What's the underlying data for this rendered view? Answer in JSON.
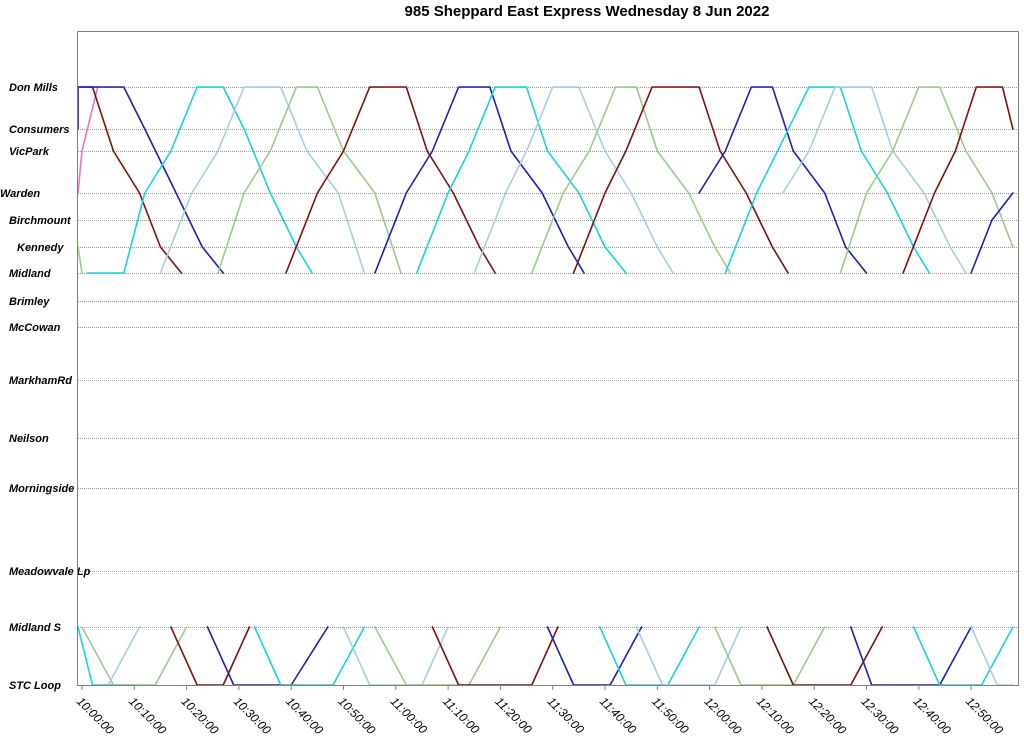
{
  "chart_data": {
    "type": "line",
    "title": "985 Sheppard East Express Wednesday 8 Jun 2022",
    "xlabel": "",
    "ylabel": "",
    "x_range": [
      "09:56",
      "12:58"
    ],
    "grid": true,
    "legend": "none",
    "stops": [
      "Don Mills",
      "Consumers",
      "VicPark",
      "Warden",
      "Birchmount",
      "Kennedy",
      "Midland",
      "Brimley",
      "McCowan",
      "MarkhamRd",
      "Neilson",
      "Morningside",
      "Meadowvale Lp",
      "Midland S",
      "STC Loop"
    ],
    "x_ticks": [
      "10:00:00",
      "10:10:00",
      "10:20:00",
      "10:30:00",
      "10:40:00",
      "10:50:00",
      "11:00:00",
      "11:10:00",
      "11:20:00",
      "11:30:00",
      "11:40:00",
      "11:50:00",
      "12:00:00",
      "12:10:00",
      "12:20:00",
      "12:30:00",
      "12:40:00",
      "12:50:00"
    ],
    "series": [
      {
        "color": "#e377c2",
        "points": [
          [
            "09:56",
            "Warden"
          ],
          [
            "10:00",
            "VicPark"
          ],
          [
            "10:03",
            "Don Mills"
          ]
        ]
      },
      {
        "color": "#f5b041",
        "points": [
          [
            "09:56",
            "Consumers"
          ],
          [
            "09:57",
            "Don Mills"
          ]
        ]
      },
      {
        "color": "#7f1010",
        "points": [
          [
            "09:58",
            "Don Mills"
          ],
          [
            "10:02",
            "Don Mills"
          ],
          [
            "10:06",
            "VicPark"
          ],
          [
            "10:11",
            "Warden"
          ],
          [
            "10:15",
            "Kennedy"
          ],
          [
            "10:19",
            "Midland"
          ]
        ]
      },
      {
        "color": "#1f1fb4",
        "points": [
          [
            "09:56",
            "Consumers"
          ],
          [
            "09:59",
            "Don Mills"
          ],
          [
            "10:08",
            "Don Mills"
          ],
          [
            "10:12",
            "Consumers"
          ],
          [
            "10:18",
            "Warden"
          ],
          [
            "10:23",
            "Kennedy"
          ],
          [
            "10:27",
            "Midland"
          ]
        ]
      },
      {
        "color": "#17d4dc",
        "points": [
          [
            "10:01",
            "Midland"
          ],
          [
            "10:08",
            "Midland"
          ],
          [
            "10:12",
            "Warden"
          ],
          [
            "10:17",
            "VicPark"
          ],
          [
            "10:22",
            "Don Mills"
          ],
          [
            "10:27",
            "Don Mills"
          ],
          [
            "10:31",
            "Consumers"
          ],
          [
            "10:36",
            "Warden"
          ],
          [
            "10:41",
            "Kennedy"
          ],
          [
            "10:44",
            "Midland"
          ]
        ]
      },
      {
        "color": "#a6cee3",
        "points": [
          [
            "10:15",
            "Midland"
          ],
          [
            "10:21",
            "Warden"
          ],
          [
            "10:26",
            "VicPark"
          ],
          [
            "10:31",
            "Don Mills"
          ],
          [
            "10:38",
            "Don Mills"
          ],
          [
            "10:43",
            "VicPark"
          ],
          [
            "10:49",
            "Warden"
          ],
          [
            "10:54",
            "Midland"
          ]
        ]
      },
      {
        "color": "#9cc98c",
        "points": [
          [
            "09:56",
            "Kennedy"
          ],
          [
            "10:00",
            "Midland"
          ]
        ]
      },
      {
        "color": "#9cc98c",
        "points": [
          [
            "10:26",
            "Midland"
          ],
          [
            "10:31",
            "Warden"
          ],
          [
            "10:36",
            "VicPark"
          ],
          [
            "10:41",
            "Don Mills"
          ],
          [
            "10:45",
            "Don Mills"
          ],
          [
            "10:50",
            "VicPark"
          ],
          [
            "10:56",
            "Warden"
          ],
          [
            "11:01",
            "Midland"
          ]
        ]
      },
      {
        "color": "#7f1010",
        "points": [
          [
            "10:39",
            "Midland"
          ],
          [
            "10:45",
            "Warden"
          ],
          [
            "10:50",
            "VicPark"
          ],
          [
            "10:55",
            "Don Mills"
          ],
          [
            "11:02",
            "Don Mills"
          ],
          [
            "11:06",
            "VicPark"
          ],
          [
            "11:11",
            "Warden"
          ],
          [
            "11:16",
            "Kennedy"
          ],
          [
            "11:19",
            "Midland"
          ]
        ]
      },
      {
        "color": "#1f1fb4",
        "points": [
          [
            "10:56",
            "Midland"
          ],
          [
            "11:02",
            "Warden"
          ],
          [
            "11:07",
            "VicPark"
          ],
          [
            "11:12",
            "Don Mills"
          ],
          [
            "11:18",
            "Don Mills"
          ],
          [
            "11:22",
            "VicPark"
          ],
          [
            "11:28",
            "Warden"
          ],
          [
            "11:33",
            "Kennedy"
          ],
          [
            "11:36",
            "Midland"
          ]
        ]
      },
      {
        "color": "#17d4dc",
        "points": [
          [
            "11:04",
            "Midland"
          ],
          [
            "11:10",
            "Warden"
          ],
          [
            "11:14",
            "VicPark"
          ],
          [
            "11:19",
            "Don Mills"
          ],
          [
            "11:25",
            "Don Mills"
          ],
          [
            "11:29",
            "VicPark"
          ],
          [
            "11:35",
            "Warden"
          ],
          [
            "11:40",
            "Kennedy"
          ],
          [
            "11:44",
            "Midland"
          ]
        ]
      },
      {
        "color": "#a6cee3",
        "points": [
          [
            "11:15",
            "Midland"
          ],
          [
            "11:21",
            "Warden"
          ],
          [
            "11:25",
            "VicPark"
          ],
          [
            "11:30",
            "Don Mills"
          ],
          [
            "11:35",
            "Don Mills"
          ],
          [
            "11:40",
            "VicPark"
          ],
          [
            "11:45",
            "Warden"
          ],
          [
            "11:50",
            "Kennedy"
          ],
          [
            "11:53",
            "Midland"
          ]
        ]
      },
      {
        "color": "#9cc98c",
        "points": [
          [
            "11:26",
            "Midland"
          ],
          [
            "11:32",
            "Warden"
          ],
          [
            "11:37",
            "VicPark"
          ],
          [
            "11:42",
            "Don Mills"
          ],
          [
            "11:46",
            "Don Mills"
          ],
          [
            "11:50",
            "VicPark"
          ],
          [
            "11:56",
            "Warden"
          ],
          [
            "12:01",
            "Kennedy"
          ],
          [
            "12:04",
            "Midland"
          ]
        ]
      },
      {
        "color": "#7f1010",
        "points": [
          [
            "11:34",
            "Midland"
          ],
          [
            "11:40",
            "Warden"
          ],
          [
            "11:44",
            "VicPark"
          ],
          [
            "11:49",
            "Don Mills"
          ],
          [
            "11:58",
            "Don Mills"
          ],
          [
            "12:02",
            "VicPark"
          ],
          [
            "12:07",
            "Warden"
          ],
          [
            "12:12",
            "Kennedy"
          ],
          [
            "12:15",
            "Midland"
          ]
        ]
      },
      {
        "color": "#1f1fb4",
        "points": [
          [
            "11:58",
            "Warden"
          ],
          [
            "12:03",
            "VicPark"
          ],
          [
            "12:08",
            "Don Mills"
          ],
          [
            "12:12",
            "Don Mills"
          ],
          [
            "12:16",
            "VicPark"
          ],
          [
            "12:22",
            "Warden"
          ],
          [
            "12:26",
            "Kennedy"
          ],
          [
            "12:30",
            "Midland"
          ]
        ]
      },
      {
        "color": "#17d4dc",
        "points": [
          [
            "12:03",
            "Midland"
          ],
          [
            "12:09",
            "Warden"
          ],
          [
            "12:13",
            "VicPark"
          ],
          [
            "12:19",
            "Don Mills"
          ],
          [
            "12:25",
            "Don Mills"
          ],
          [
            "12:29",
            "VicPark"
          ],
          [
            "12:34",
            "Warden"
          ],
          [
            "12:39",
            "Kennedy"
          ],
          [
            "12:42",
            "Midland"
          ]
        ]
      },
      {
        "color": "#a6cee3",
        "points": [
          [
            "12:14",
            "Warden"
          ],
          [
            "12:19",
            "VicPark"
          ],
          [
            "12:24",
            "Don Mills"
          ],
          [
            "12:31",
            "Don Mills"
          ],
          [
            "12:35",
            "VicPark"
          ],
          [
            "12:41",
            "Warden"
          ],
          [
            "12:46",
            "Kennedy"
          ],
          [
            "12:49",
            "Midland"
          ]
        ]
      },
      {
        "color": "#9cc98c",
        "points": [
          [
            "12:25",
            "Midland"
          ],
          [
            "12:30",
            "Warden"
          ],
          [
            "12:35",
            "VicPark"
          ],
          [
            "12:40",
            "Don Mills"
          ],
          [
            "12:44",
            "Don Mills"
          ],
          [
            "12:49",
            "VicPark"
          ],
          [
            "12:54",
            "Warden"
          ],
          [
            "12:58",
            "Kennedy"
          ]
        ]
      },
      {
        "color": "#7f1010",
        "points": [
          [
            "12:37",
            "Midland"
          ],
          [
            "12:43",
            "Warden"
          ],
          [
            "12:47",
            "VicPark"
          ],
          [
            "12:51",
            "Don Mills"
          ],
          [
            "12:56",
            "Don Mills"
          ],
          [
            "12:58",
            "Consumers"
          ]
        ]
      },
      {
        "color": "#1f1fb4",
        "points": [
          [
            "12:50",
            "Midland"
          ],
          [
            "12:54",
            "Birchmount"
          ],
          [
            "12:58",
            "Warden"
          ]
        ]
      },
      {
        "color": "#17d4dc",
        "points": [
          [
            "09:56",
            "Midland S"
          ],
          [
            "09:58",
            "Midland S"
          ],
          [
            "10:02",
            "STC Loop"
          ],
          [
            "10:10",
            "STC Loop"
          ]
        ]
      },
      {
        "color": "#9cc98c",
        "points": [
          [
            "10:00",
            "Midland S"
          ],
          [
            "10:06",
            "STC Loop"
          ],
          [
            "10:14",
            "STC Loop"
          ],
          [
            "10:20",
            "Midland S"
          ]
        ]
      },
      {
        "color": "#a6cee3",
        "points": [
          [
            "10:05",
            "STC Loop"
          ],
          [
            "10:11",
            "Midland S"
          ]
        ]
      },
      {
        "color": "#7f1010",
        "points": [
          [
            "10:17",
            "Midland S"
          ],
          [
            "10:22",
            "STC Loop"
          ],
          [
            "10:27",
            "STC Loop"
          ],
          [
            "10:32",
            "Midland S"
          ]
        ]
      },
      {
        "color": "#1f1fb4",
        "points": [
          [
            "10:24",
            "Midland S"
          ],
          [
            "10:29",
            "STC Loop"
          ],
          [
            "10:40",
            "STC Loop"
          ],
          [
            "10:47",
            "Midland S"
          ]
        ]
      },
      {
        "color": "#17d4dc",
        "points": [
          [
            "10:33",
            "Midland S"
          ],
          [
            "10:38",
            "STC Loop"
          ],
          [
            "10:48",
            "STC Loop"
          ],
          [
            "10:54",
            "Midland S"
          ]
        ]
      },
      {
        "color": "#a6cee3",
        "points": [
          [
            "10:50",
            "Midland S"
          ],
          [
            "10:55",
            "STC Loop"
          ],
          [
            "11:05",
            "STC Loop"
          ],
          [
            "11:10",
            "Midland S"
          ]
        ]
      },
      {
        "color": "#9cc98c",
        "points": [
          [
            "10:56",
            "Midland S"
          ],
          [
            "11:02",
            "STC Loop"
          ],
          [
            "11:14",
            "STC Loop"
          ],
          [
            "11:20",
            "Midland S"
          ]
        ]
      },
      {
        "color": "#7f1010",
        "points": [
          [
            "11:07",
            "Midland S"
          ],
          [
            "11:12",
            "STC Loop"
          ],
          [
            "11:26",
            "STC Loop"
          ],
          [
            "11:31",
            "Midland S"
          ]
        ]
      },
      {
        "color": "#1f1fb4",
        "points": [
          [
            "11:29",
            "Midland S"
          ],
          [
            "11:34",
            "STC Loop"
          ],
          [
            "11:41",
            "STC Loop"
          ],
          [
            "11:47",
            "Midland S"
          ]
        ]
      },
      {
        "color": "#17d4dc",
        "points": [
          [
            "11:39",
            "Midland S"
          ],
          [
            "11:44",
            "STC Loop"
          ],
          [
            "11:52",
            "STC Loop"
          ],
          [
            "11:58",
            "Midland S"
          ]
        ]
      },
      {
        "color": "#a6cee3",
        "points": [
          [
            "11:46",
            "Midland S"
          ],
          [
            "11:51",
            "STC Loop"
          ],
          [
            "12:01",
            "STC Loop"
          ],
          [
            "12:06",
            "Midland S"
          ]
        ]
      },
      {
        "color": "#9cc98c",
        "points": [
          [
            "12:01",
            "Midland S"
          ],
          [
            "12:06",
            "STC Loop"
          ],
          [
            "12:16",
            "STC Loop"
          ],
          [
            "12:22",
            "Midland S"
          ]
        ]
      },
      {
        "color": "#7f1010",
        "points": [
          [
            "12:11",
            "Midland S"
          ],
          [
            "12:16",
            "STC Loop"
          ],
          [
            "12:27",
            "STC Loop"
          ],
          [
            "12:33",
            "Midland S"
          ]
        ]
      },
      {
        "color": "#1f1fb4",
        "points": [
          [
            "12:27",
            "Midland S"
          ],
          [
            "12:31",
            "STC Loop"
          ],
          [
            "12:44",
            "STC Loop"
          ],
          [
            "12:50",
            "Midland S"
          ]
        ]
      },
      {
        "color": "#17d4dc",
        "points": [
          [
            "12:39",
            "Midland S"
          ],
          [
            "12:44",
            "STC Loop"
          ],
          [
            "12:52",
            "STC Loop"
          ],
          [
            "12:58",
            "Midland S"
          ]
        ]
      },
      {
        "color": "#a6cee3",
        "points": [
          [
            "12:50",
            "Midland S"
          ],
          [
            "12:55",
            "STC Loop"
          ],
          [
            "12:58",
            "STC Loop"
          ]
        ]
      }
    ]
  }
}
